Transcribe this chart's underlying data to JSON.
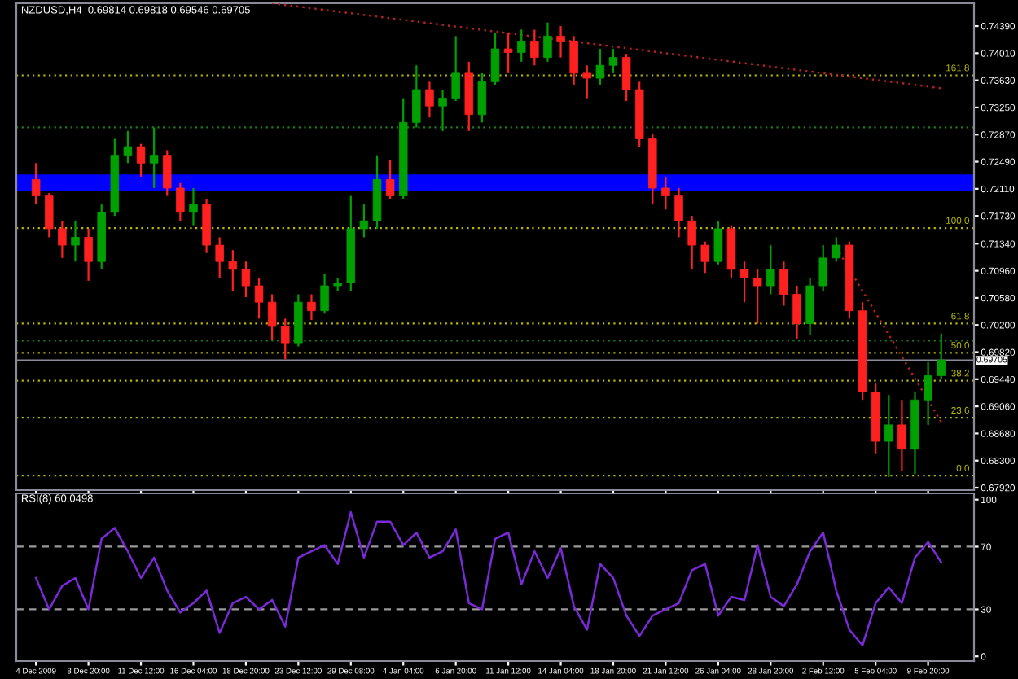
{
  "chart_data": [
    {
      "type": "candlestick",
      "title": "NZDUSD,H4  0.69814 0.69818 0.69546 0.69705",
      "tick_labels": "y",
      "grid": false,
      "ohlc": [
        [
          0.7224,
          0.7247,
          0.7189,
          0.7201
        ],
        [
          0.7201,
          0.7205,
          0.7143,
          0.7155
        ],
        [
          0.7155,
          0.7166,
          0.7114,
          0.7132
        ],
        [
          0.7132,
          0.7166,
          0.7109,
          0.7143
        ],
        [
          0.7143,
          0.7155,
          0.7082,
          0.7109
        ],
        [
          0.7109,
          0.7189,
          0.7098,
          0.7178
        ],
        [
          0.7178,
          0.7281,
          0.7173,
          0.7258
        ],
        [
          0.7258,
          0.7292,
          0.7247,
          0.727
        ],
        [
          0.727,
          0.7274,
          0.7228,
          0.7247
        ],
        [
          0.7247,
          0.7297,
          0.7212,
          0.7258
        ],
        [
          0.7258,
          0.7265,
          0.7201,
          0.7212
        ],
        [
          0.7212,
          0.7219,
          0.7166,
          0.7178
        ],
        [
          0.7178,
          0.7212,
          0.716,
          0.7189
        ],
        [
          0.7189,
          0.7196,
          0.7121,
          0.7132
        ],
        [
          0.7132,
          0.7143,
          0.7086,
          0.7109
        ],
        [
          0.7109,
          0.7125,
          0.7068,
          0.7098
        ],
        [
          0.7098,
          0.7109,
          0.7059,
          0.7075
        ],
        [
          0.7075,
          0.7086,
          0.7029,
          0.7052
        ],
        [
          0.7052,
          0.7063,
          0.6999,
          0.7018
        ],
        [
          0.7018,
          0.7029,
          0.6972,
          0.6995
        ],
        [
          0.6995,
          0.7063,
          0.699,
          0.7052
        ],
        [
          0.7052,
          0.7063,
          0.7027,
          0.704
        ],
        [
          0.704,
          0.7091,
          0.7036,
          0.7075
        ],
        [
          0.7075,
          0.7086,
          0.7068,
          0.7079
        ],
        [
          0.7079,
          0.7201,
          0.7068,
          0.7155
        ],
        [
          0.7155,
          0.7189,
          0.7143,
          0.7166
        ],
        [
          0.7166,
          0.7258,
          0.7155,
          0.7224
        ],
        [
          0.7224,
          0.7251,
          0.7196,
          0.7201
        ],
        [
          0.7201,
          0.7338,
          0.7196,
          0.7304
        ],
        [
          0.7304,
          0.7384,
          0.7297,
          0.735
        ],
        [
          0.735,
          0.7361,
          0.7311,
          0.7327
        ],
        [
          0.7327,
          0.735,
          0.7292,
          0.7338
        ],
        [
          0.7338,
          0.7425,
          0.7334,
          0.7373
        ],
        [
          0.7373,
          0.7389,
          0.7292,
          0.7315
        ],
        [
          0.7315,
          0.7373,
          0.7304,
          0.7361
        ],
        [
          0.7361,
          0.743,
          0.7357,
          0.7407
        ],
        [
          0.7407,
          0.743,
          0.7373,
          0.7402
        ],
        [
          0.7402,
          0.7434,
          0.7389,
          0.7418
        ],
        [
          0.7418,
          0.7434,
          0.7384,
          0.7395
        ],
        [
          0.7395,
          0.7444,
          0.7389,
          0.7425
        ],
        [
          0.7425,
          0.7439,
          0.7395,
          0.7418
        ],
        [
          0.7418,
          0.7425,
          0.7357,
          0.7373
        ],
        [
          0.7373,
          0.7384,
          0.7338,
          0.7366
        ],
        [
          0.7366,
          0.7407,
          0.7357,
          0.7384
        ],
        [
          0.7384,
          0.7407,
          0.7373,
          0.7395
        ],
        [
          0.7395,
          0.74,
          0.7334,
          0.735
        ],
        [
          0.735,
          0.7361,
          0.727,
          0.7281
        ],
        [
          0.7281,
          0.7288,
          0.7189,
          0.7212
        ],
        [
          0.7212,
          0.7228,
          0.7182,
          0.7201
        ],
        [
          0.7201,
          0.7212,
          0.7143,
          0.7166
        ],
        [
          0.7166,
          0.7173,
          0.7098,
          0.7132
        ],
        [
          0.7132,
          0.7137,
          0.7093,
          0.7109
        ],
        [
          0.7109,
          0.7166,
          0.7105,
          0.7155
        ],
        [
          0.7155,
          0.716,
          0.7086,
          0.7098
        ],
        [
          0.7098,
          0.7109,
          0.7052,
          0.7086
        ],
        [
          0.7086,
          0.7098,
          0.7022,
          0.7075
        ],
        [
          0.7075,
          0.7132,
          0.7063,
          0.7098
        ],
        [
          0.7098,
          0.7109,
          0.7047,
          0.7063
        ],
        [
          0.7063,
          0.7075,
          0.7001,
          0.7022
        ],
        [
          0.7022,
          0.7086,
          0.7006,
          0.7075
        ],
        [
          0.7075,
          0.7132,
          0.7068,
          0.7114
        ],
        [
          0.7114,
          0.7143,
          0.7109,
          0.7132
        ],
        [
          0.7132,
          0.7137,
          0.7029,
          0.704
        ],
        [
          0.704,
          0.7052,
          0.6915,
          0.6926
        ],
        [
          0.6926,
          0.6938,
          0.6839,
          0.6857
        ],
        [
          0.6857,
          0.6922,
          0.6807,
          0.688
        ],
        [
          0.688,
          0.6915,
          0.6816,
          0.6846
        ],
        [
          0.6846,
          0.6926,
          0.6811,
          0.6915
        ],
        [
          0.6915,
          0.6968,
          0.688,
          0.6949
        ],
        [
          0.6949,
          0.7008,
          0.6944,
          0.6971
        ]
      ],
      "colors": [
        "#ff2020",
        "#ff2020",
        "#ff2020",
        "#00a000",
        "#ff2020",
        "#00a000",
        "#00a000",
        "#00a000",
        "#ff2020",
        "#00a000",
        "#ff2020",
        "#ff2020",
        "#00a000",
        "#ff2020",
        "#ff2020",
        "#ff2020",
        "#ff2020",
        "#ff2020",
        "#ff2020",
        "#ff2020",
        "#00a000",
        "#ff2020",
        "#00a000",
        "#00a000",
        "#00a000",
        "#00a000",
        "#00a000",
        "#ff2020",
        "#00a000",
        "#00a000",
        "#ff2020",
        "#00a000",
        "#00a000",
        "#ff2020",
        "#00a000",
        "#00a000",
        "#ff2020",
        "#00a000",
        "#ff2020",
        "#00a000",
        "#ff2020",
        "#ff2020",
        "#ff2020",
        "#00a000",
        "#00a000",
        "#ff2020",
        "#ff2020",
        "#ff2020",
        "#ff2020",
        "#ff2020",
        "#ff2020",
        "#ff2020",
        "#00a000",
        "#ff2020",
        "#ff2020",
        "#ff2020",
        "#00a000",
        "#ff2020",
        "#ff2020",
        "#00a000",
        "#00a000",
        "#00a000",
        "#ff2020",
        "#ff2020",
        "#ff2020",
        "#00a000",
        "#ff2020",
        "#00a000",
        "#00a000",
        "#00a000"
      ],
      "series": [
        {
          "type": "line",
          "values": [
            null,
            null,
            null,
            null,
            null,
            null,
            null,
            null,
            null,
            null,
            null,
            null,
            null,
            null,
            null,
            null,
            null,
            null,
            0.7471,
            null,
            null,
            null,
            null,
            null,
            null,
            null,
            null,
            null,
            null,
            null,
            null,
            null,
            null,
            null,
            null,
            null,
            null,
            null,
            null,
            null,
            null,
            null,
            null,
            null,
            null,
            null,
            null,
            null,
            null,
            null,
            null,
            null,
            null,
            null,
            null,
            null,
            null,
            null,
            null,
            null,
            null,
            null,
            null,
            null,
            null,
            null,
            null,
            null,
            null,
            0.7352
          ],
          "color": "#b22222",
          "line_style": "dotted"
        },
        {
          "type": "line",
          "values": [
            null,
            null,
            null,
            null,
            null,
            null,
            null,
            null,
            null,
            null,
            null,
            null,
            null,
            null,
            null,
            null,
            null,
            null,
            null,
            null,
            null,
            null,
            null,
            null,
            null,
            null,
            null,
            null,
            null,
            null,
            null,
            null,
            null,
            null,
            null,
            null,
            null,
            null,
            null,
            null,
            null,
            null,
            null,
            null,
            null,
            null,
            null,
            null,
            null,
            null,
            null,
            null,
            null,
            null,
            null,
            null,
            null,
            null,
            null,
            null,
            null,
            0.7129,
            null,
            null,
            null,
            null,
            null,
            null,
            null,
            0.6884
          ],
          "color": "#b22222",
          "line_style": "dotted"
        }
      ],
      "annotations": [
        {
          "text": "161.8",
          "y": 0.737
        },
        {
          "text": "100.0",
          "y": 0.7156
        },
        {
          "text": "61.8",
          "y": 0.7022
        },
        {
          "text": "50.0",
          "y": 0.6981
        },
        {
          "text": "38.2",
          "y": 0.6942
        },
        {
          "text": "23.6",
          "y": 0.689
        },
        {
          "text": "0.0",
          "y": 0.6809
        }
      ],
      "ylim": [
        0.67886,
        0.7471
      ],
      "yticks": [
        {
          "value": 0.7439,
          "label": "0.74390"
        },
        {
          "value": 0.7401,
          "label": "0.74010"
        },
        {
          "value": 0.7363,
          "label": "0.73630"
        },
        {
          "value": 0.7325,
          "label": "0.73250"
        },
        {
          "value": 0.7287,
          "label": "0.72870"
        },
        {
          "value": 0.7249,
          "label": "0.72490"
        },
        {
          "value": 0.7211,
          "label": "0.72110"
        },
        {
          "value": 0.7173,
          "label": "0.71730"
        },
        {
          "value": 0.7134,
          "label": "0.71340"
        },
        {
          "value": 0.7096,
          "label": "0.70960"
        },
        {
          "value": 0.7058,
          "label": "0.70580"
        },
        {
          "value": 0.702,
          "label": "0.70200"
        },
        {
          "value": 0.6982,
          "label": "0.69820"
        },
        {
          "value": 0.6944,
          "label": "0.69440"
        },
        {
          "value": 0.6906,
          "label": "0.69060"
        },
        {
          "value": 0.6868,
          "label": "0.68680"
        },
        {
          "value": 0.683,
          "label": "0.68300"
        },
        {
          "value": 0.6792,
          "label": "0.67920"
        }
      ],
      "bands": [
        {
          "axis": "y",
          "from": 0.7208,
          "to": 0.7231,
          "color": "#0000ff"
        }
      ],
      "ref_lines": [
        {
          "axis": "y",
          "value": 0.737,
          "color": "#b8b800",
          "line_style": "dotted"
        },
        {
          "axis": "y",
          "value": 0.7156,
          "color": "#b8b800",
          "line_style": "dotted"
        },
        {
          "axis": "y",
          "value": 0.7022,
          "color": "#b8b800",
          "line_style": "dotted"
        },
        {
          "axis": "y",
          "value": 0.6981,
          "color": "#b8b800",
          "line_style": "dotted"
        },
        {
          "axis": "y",
          "value": 0.6942,
          "color": "#b8b800",
          "line_style": "dotted"
        },
        {
          "axis": "y",
          "value": 0.689,
          "color": "#b8b800",
          "line_style": "dotted"
        },
        {
          "axis": "y",
          "value": 0.6809,
          "color": "#b8b800",
          "line_style": "dotted"
        },
        {
          "axis": "y",
          "value": 0.7297,
          "color": "#1f7a1f",
          "line_style": "dotted"
        },
        {
          "axis": "y",
          "value": 0.6998,
          "color": "#1f7a1f",
          "line_style": "dotted"
        },
        {
          "axis": "y",
          "value": 0.69705,
          "label": "0.69705",
          "color": "#8a8a99",
          "line_style": "solid"
        }
      ]
    },
    {
      "type": "line",
      "title": "RSI(8) 60.0498",
      "grid": false,
      "categories": [
        "4 Dec 2009",
        null,
        null,
        null,
        "8 Dec 20:00",
        null,
        null,
        null,
        "11 Dec 12:00",
        null,
        null,
        null,
        "16 Dec 04:00",
        null,
        null,
        null,
        "18 Dec 20:00",
        null,
        null,
        null,
        "23 Dec 12:00",
        null,
        null,
        null,
        "29 Dec 08:00",
        null,
        null,
        null,
        "4 Jan 04:00",
        null,
        null,
        null,
        "6 Jan 20:00",
        null,
        null,
        null,
        "11 Jan 12:00",
        null,
        null,
        null,
        "14 Jan 04:00",
        null,
        null,
        null,
        "18 Jan 20:00",
        null,
        null,
        null,
        "21 Jan 12:00",
        null,
        null,
        null,
        "26 Jan 04:00",
        null,
        null,
        null,
        "28 Jan 20:00",
        null,
        null,
        null,
        "2 Feb 12:00",
        null,
        null,
        null,
        "5 Feb 04:00",
        null,
        null,
        null,
        "9 Feb 20:00",
        null
      ],
      "series": [
        {
          "color": "#7a2ad8",
          "values": [
            50,
            30,
            45,
            50,
            30,
            75,
            82,
            67,
            50,
            63,
            42,
            28,
            34,
            42,
            15,
            34,
            38,
            30,
            36,
            19,
            63,
            67,
            71,
            59,
            92,
            63,
            86,
            86,
            71,
            79,
            63,
            67,
            81,
            34,
            30,
            75,
            79,
            46,
            67,
            50,
            69,
            32,
            17,
            59,
            50,
            26,
            13,
            26,
            30,
            34,
            55,
            59,
            26,
            38,
            36,
            71,
            38,
            32,
            46,
            67,
            79,
            42,
            17,
            7,
            34,
            44,
            34,
            63,
            73,
            60
          ]
        }
      ],
      "ylim": [
        -3,
        104
      ],
      "yticks": [
        0,
        30,
        70,
        100
      ],
      "ref_lines": [
        {
          "axis": "y",
          "value": 70,
          "color": "#9a9a9a",
          "line_style": "dashed"
        },
        {
          "axis": "y",
          "value": 30,
          "color": "#9a9a9a",
          "line_style": "dashed"
        }
      ]
    }
  ]
}
